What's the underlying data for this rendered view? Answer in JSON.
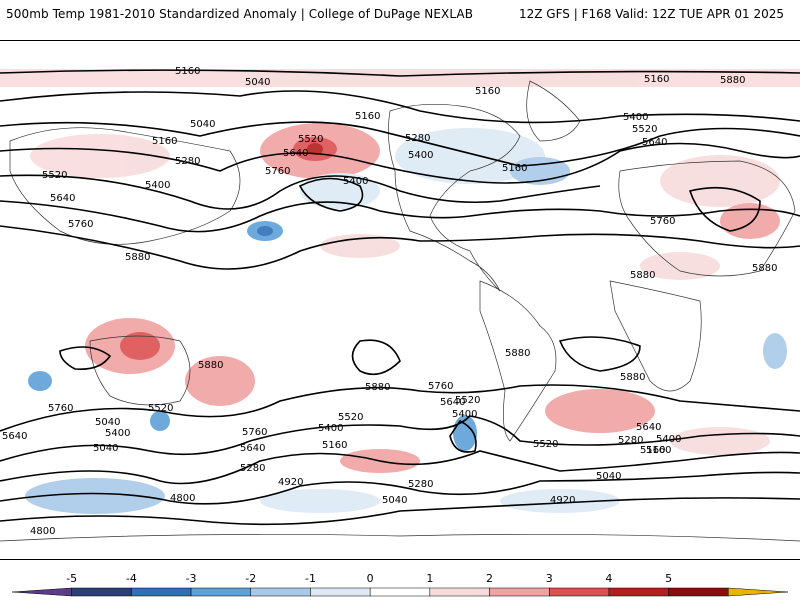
{
  "header": {
    "left_title": "500mb Temp 1981-2010 Standardized Anomaly | College of DuPage NEXLAB",
    "right_title": "12Z GFS | F168 Valid: 12Z TUE APR 01 2025"
  },
  "colorbar": {
    "ticks": [
      "-5",
      "-4",
      "-3",
      "-2",
      "-1",
      "0",
      "1",
      "2",
      "3",
      "4",
      "5"
    ],
    "colors": [
      "#5a3b8c",
      "#2b3f75",
      "#2f6fb6",
      "#5ea0d8",
      "#a9c9e8",
      "#dce9f5",
      "#ffffff",
      "#f8dcdc",
      "#f0a3a3",
      "#dc5050",
      "#b41e1e",
      "#8a0c0c",
      "#e8b400"
    ]
  },
  "map": {
    "contour_labels": [
      "5160",
      "5040",
      "5040",
      "5160",
      "5160",
      "5160",
      "5280",
      "5280",
      "5400",
      "5520",
      "5640",
      "5760",
      "5400",
      "5160",
      "5400",
      "5520",
      "5640",
      "5760",
      "5880",
      "5880",
      "5880",
      "5160",
      "5400",
      "5520",
      "5640",
      "5760",
      "5880",
      "5880",
      "5880",
      "5880",
      "5880",
      "5760",
      "5640",
      "5400",
      "5520",
      "5400",
      "5160",
      "5280",
      "5040",
      "5520",
      "5400",
      "5040",
      "5640",
      "5760",
      "5640",
      "5760",
      "5640",
      "5520",
      "5400",
      "5280",
      "5160",
      "5040",
      "4920",
      "4800",
      "4800",
      "5040",
      "4920",
      "5280",
      "5520",
      "5160"
    ]
  }
}
